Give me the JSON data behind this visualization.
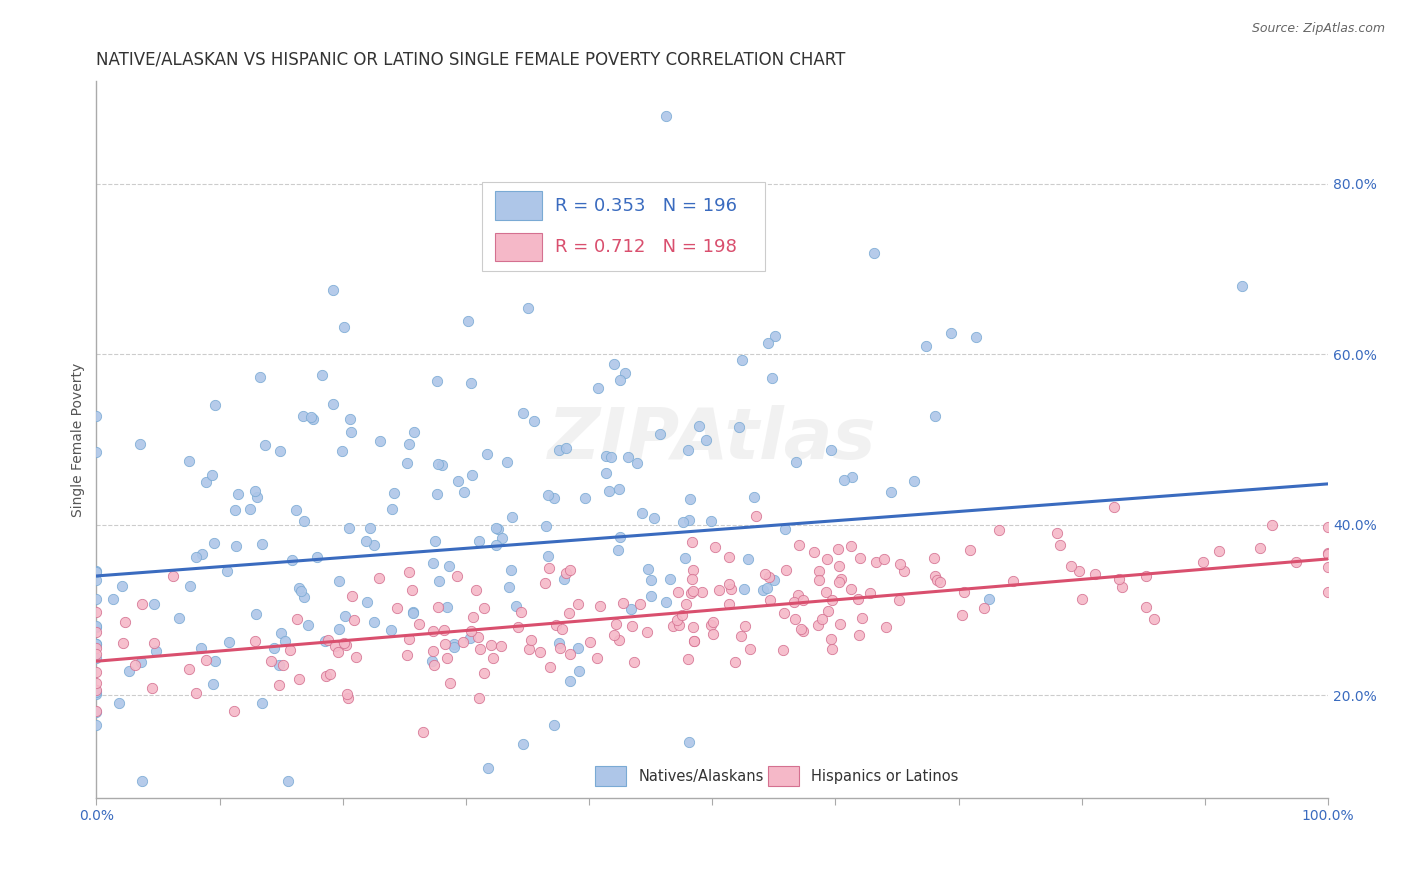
{
  "title": "NATIVE/ALASKAN VS HISPANIC OR LATINO SINGLE FEMALE POVERTY CORRELATION CHART",
  "source": "Source: ZipAtlas.com",
  "ylabel": "Single Female Poverty",
  "xlim": [
    0,
    1
  ],
  "ylim": [
    0.08,
    0.92
  ],
  "ytick_positions": [
    0.2,
    0.4,
    0.6,
    0.8
  ],
  "ytick_labels": [
    "20.0%",
    "40.0%",
    "60.0%",
    "80.0%"
  ],
  "blue_R": 0.353,
  "blue_N": 196,
  "pink_R": 0.712,
  "pink_N": 198,
  "blue_color": "#aec6e8",
  "blue_line_color": "#3a6bbf",
  "pink_color": "#f5b8c8",
  "pink_line_color": "#d94f6e",
  "blue_edge_color": "#7aaad4",
  "pink_edge_color": "#d47090",
  "watermark": "ZIPAtlas",
  "blue_trend_intercept": 0.34,
  "blue_trend_slope": 0.108,
  "pink_trend_intercept": 0.24,
  "pink_trend_slope": 0.12,
  "title_fontsize": 12,
  "axis_label_fontsize": 10,
  "tick_fontsize": 10,
  "legend_fontsize": 13,
  "marker_size": 55,
  "background_color": "#ffffff",
  "grid_color": "#cccccc"
}
